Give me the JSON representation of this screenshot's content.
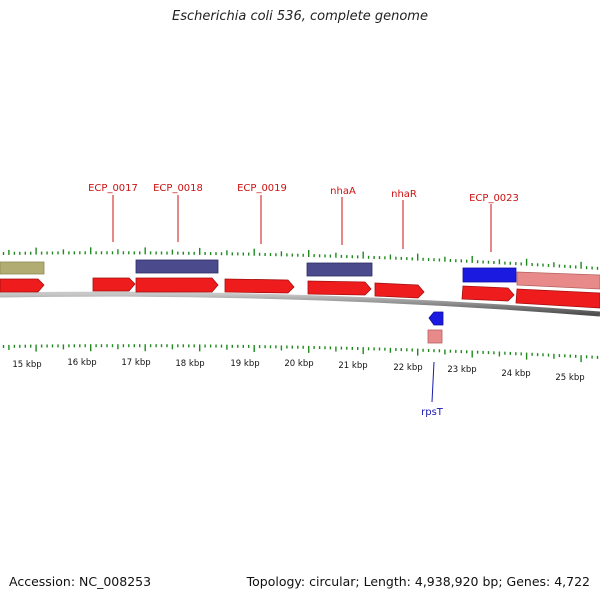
{
  "title": "Escherichia coli 536, complete genome",
  "footer": {
    "accession": "Accession: NC_008253",
    "summary": "Topology: circular; Length: 4,938,920 bp; Genes: 4,722"
  },
  "colors": {
    "forward_cds": "#ee1c1c",
    "forward_cds_light": "#e88a8a",
    "reverse_blue": "#1a1ae0",
    "reverse_purple": "#4a4a8c",
    "reverse_olive": "#b0ac72",
    "tick_green": "#1e8a1e",
    "label_red": "#cc1111",
    "label_blue": "#1a1ab0",
    "backbone": "#7a7a7a"
  },
  "scale": {
    "unit": "kbp",
    "labels": [
      "15 kbp",
      "16 kbp",
      "17 kbp",
      "18 kbp",
      "19 kbp",
      "20 kbp",
      "21 kbp",
      "22 kbp",
      "23 kbp",
      "24 kbp",
      "25 kbp"
    ]
  },
  "gene_labels": [
    {
      "name": "ECP_0017",
      "strand": "forward"
    },
    {
      "name": "ECP_0018",
      "strand": "forward"
    },
    {
      "name": "ECP_0019",
      "strand": "forward"
    },
    {
      "name": "nhaA",
      "strand": "forward"
    },
    {
      "name": "nhaR",
      "strand": "forward"
    },
    {
      "name": "ECP_0023",
      "strand": "forward"
    },
    {
      "name": "rpsT",
      "strand": "reverse"
    }
  ]
}
